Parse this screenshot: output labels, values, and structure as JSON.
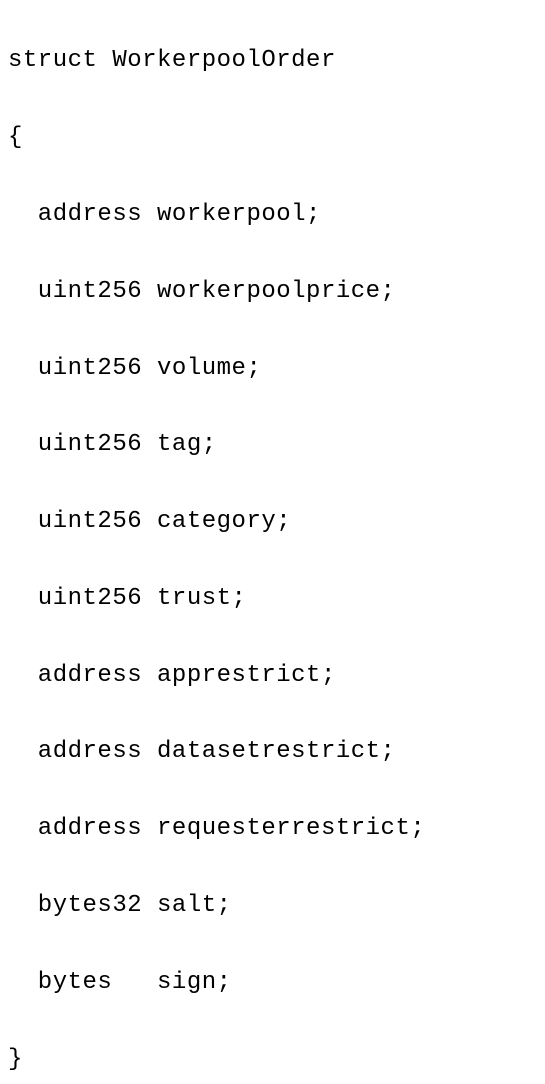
{
  "code": {
    "font_family": "Courier New, monospace",
    "font_size": 24,
    "text_color": "#000000",
    "bg_color": "#ffffff",
    "lines": [
      "struct WorkerpoolOrder",
      "{",
      "  address workerpool;",
      "  uint256 workerpoolprice;",
      "  uint256 volume;",
      "  uint256 tag;",
      "  uint256 category;",
      "  uint256 trust;",
      "  address apprestrict;",
      "  address datasetrestrict;",
      "  address requesterrestrict;",
      "  bytes32 salt;",
      "  bytes   sign;",
      "}"
    ]
  }
}
